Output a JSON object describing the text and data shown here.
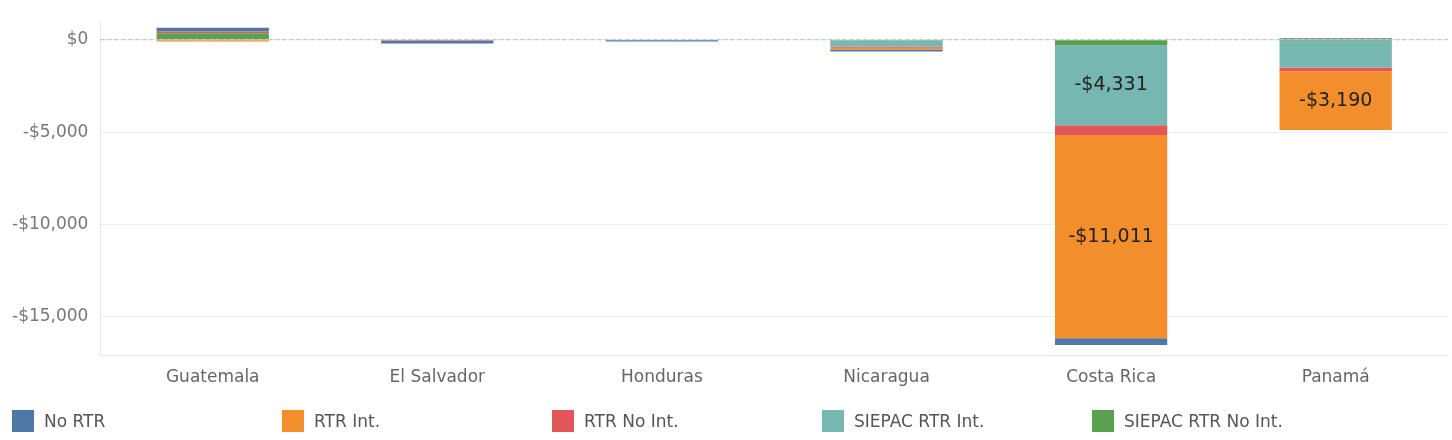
{
  "chart_data": {
    "type": "bar",
    "stacked": true,
    "categories": [
      "Guatemala",
      "El Salvador",
      "Honduras",
      "Nicaragua",
      "Costa Rica",
      "Panamá"
    ],
    "series": [
      {
        "name": "SIEPAC RTR No Int.",
        "color": "#59a14f",
        "values": [
          350,
          null,
          null,
          -50,
          -300,
          -100
        ]
      },
      {
        "name": "SIEPAC RTR Int.",
        "color": "#76b7b2",
        "values": [
          null,
          null,
          null,
          -330,
          -4331,
          -1400
        ],
        "value_labels": [
          null,
          null,
          null,
          null,
          "-$4,331",
          null
        ]
      },
      {
        "name": "RTR No Int.",
        "color": "#e15759",
        "values": [
          100,
          -50,
          null,
          -50,
          -520,
          -200
        ]
      },
      {
        "name": "RTR Int.",
        "color": "#f28e2b",
        "values": [
          -100,
          null,
          null,
          -100,
          -11011,
          -3190
        ],
        "value_labels": [
          null,
          null,
          null,
          null,
          "-$11,011",
          "-$3,190"
        ]
      },
      {
        "name": "No RTR",
        "color": "#4e79a7",
        "values": [
          200,
          -150,
          -100,
          -100,
          -360,
          80
        ]
      }
    ],
    "ylim": [
      -17100,
      950
    ],
    "yticks": [
      {
        "value": 0,
        "label": "$0"
      },
      {
        "value": -5000,
        "label": "-$5,000"
      },
      {
        "value": -10000,
        "label": "-$10,000"
      },
      {
        "value": -15000,
        "label": "-$15,000"
      }
    ],
    "grid": "y",
    "legend": "bottom",
    "ref_lines": [
      {
        "axis": "y",
        "value": 0,
        "color": "#bbbbbb",
        "line_style": "dashed"
      }
    ]
  }
}
